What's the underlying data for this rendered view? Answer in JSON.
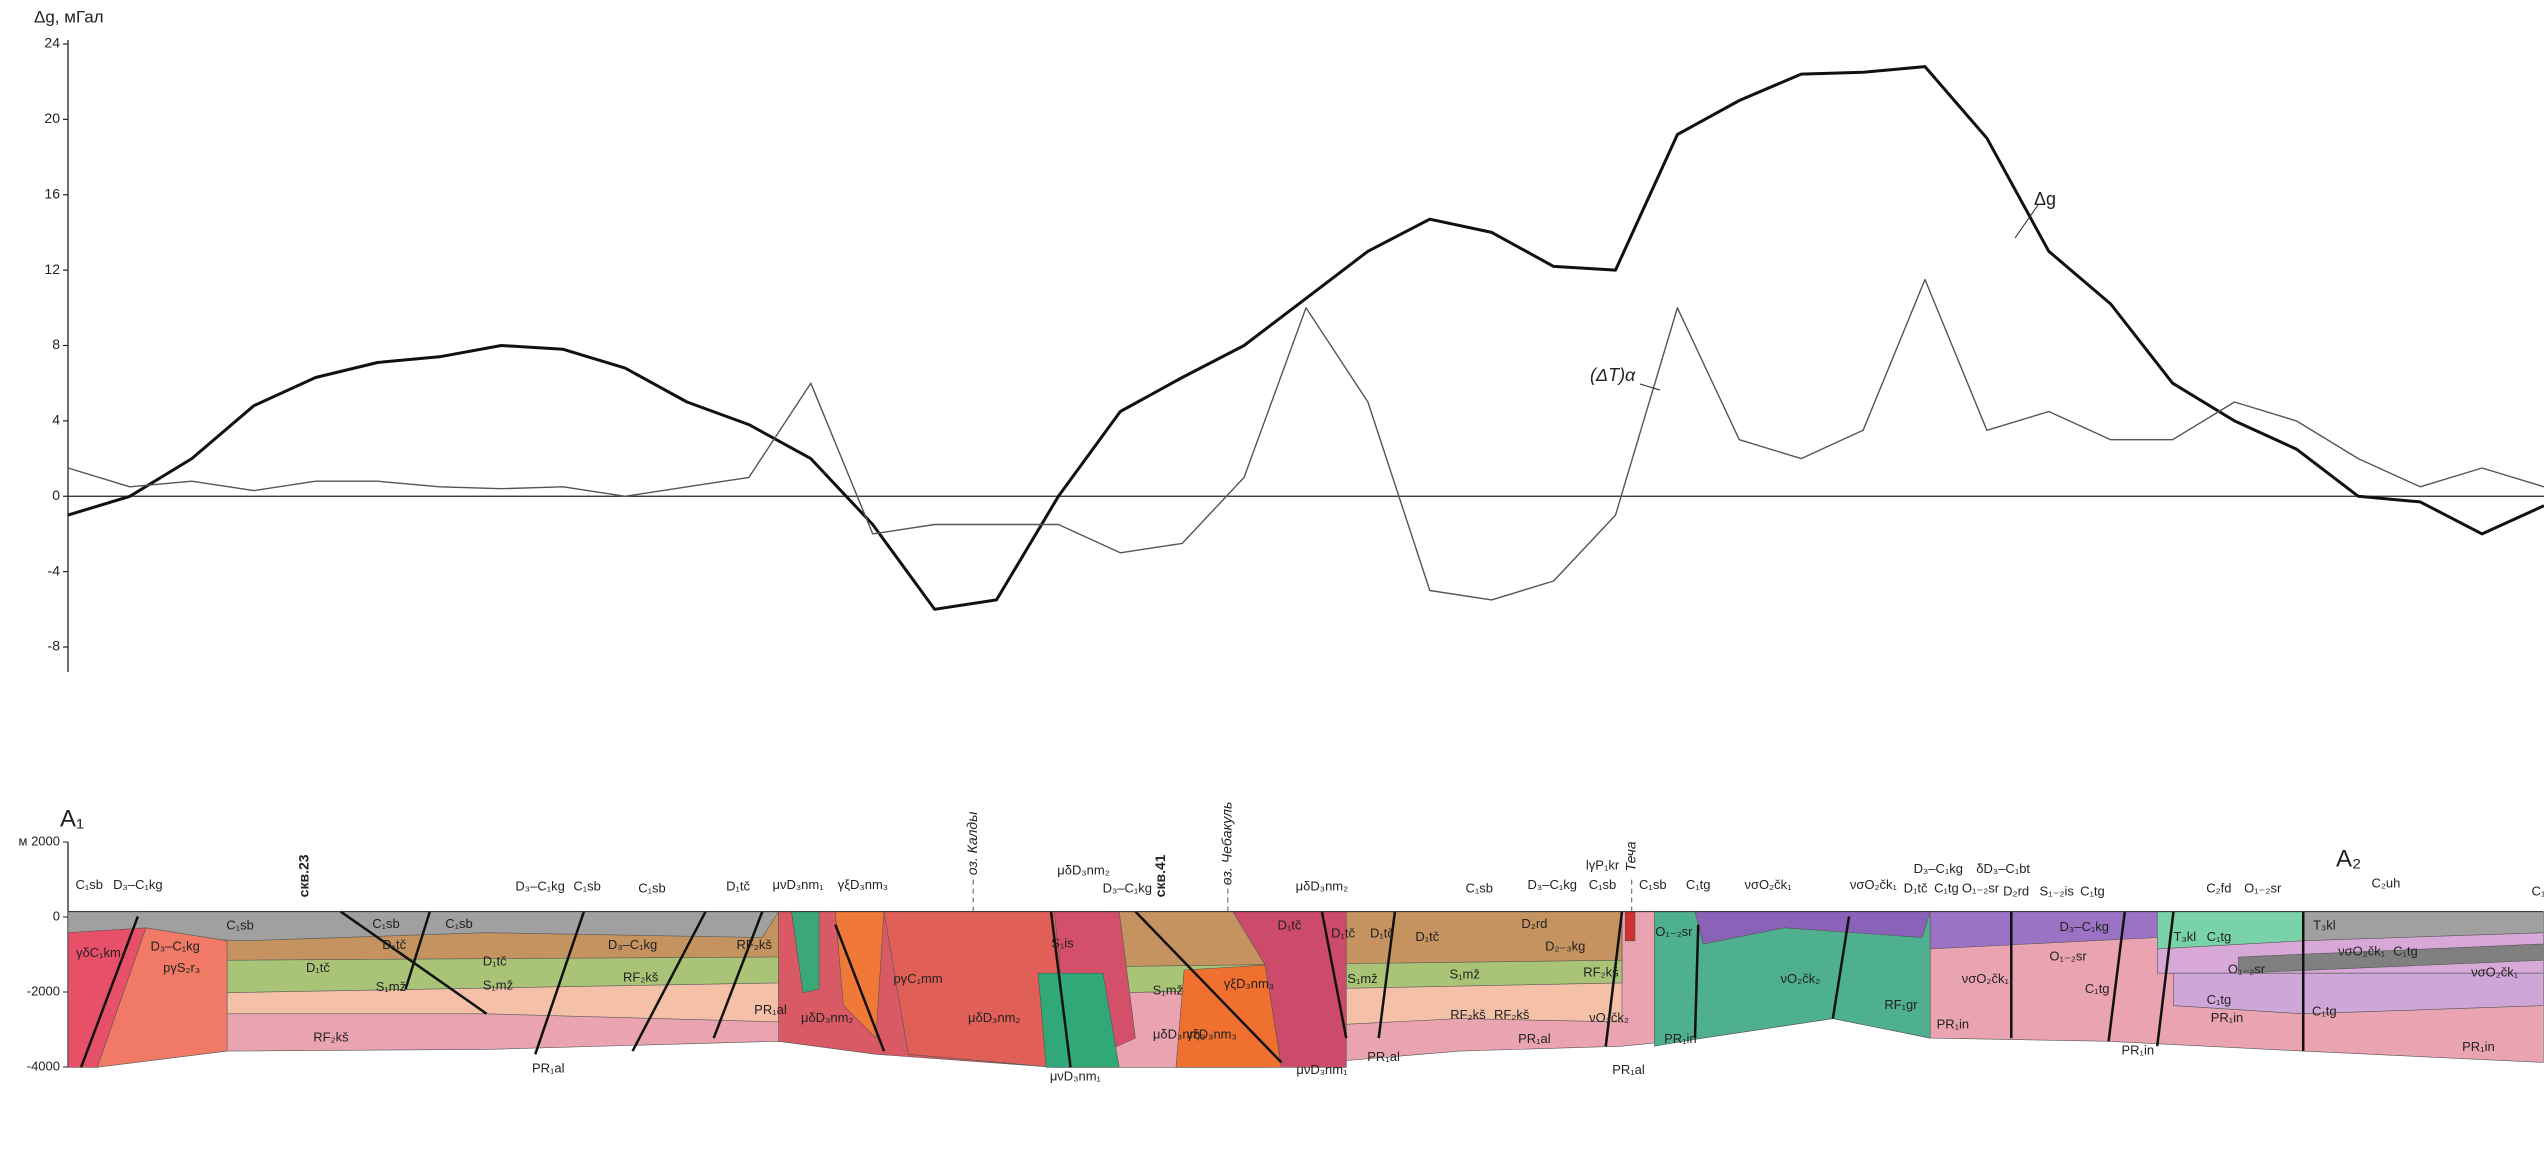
{
  "chart_data": {
    "type": "line",
    "ylabel": "Δg, мГал",
    "ylim": [
      -8,
      24
    ],
    "yticks": [
      24,
      20,
      16,
      12,
      8,
      4,
      0,
      -4,
      -8
    ],
    "series": [
      {
        "name": "Δg",
        "color": "#111111",
        "values": [
          -1,
          0,
          2,
          4.8,
          6.3,
          7.1,
          7.4,
          8,
          7.8,
          6.8,
          5,
          3.8,
          2,
          -1.5,
          -6,
          -5.5,
          0,
          4.5,
          6.3,
          8,
          10.5,
          13,
          14.7,
          14,
          12.2,
          12,
          19.2,
          21,
          22.4,
          22.5,
          22.8,
          19,
          13,
          10.2,
          6,
          4,
          2.5,
          0,
          -0.3,
          -2,
          -0.5
        ]
      },
      {
        "name": "(ΔT)α",
        "color": "#555555",
        "values": [
          1.5,
          0.5,
          0.8,
          0.3,
          0.8,
          0.8,
          0.5,
          0.4,
          0.5,
          0,
          0.5,
          1,
          6,
          -2,
          -1.5,
          -1.5,
          -1.5,
          -3,
          -2.5,
          1,
          10,
          5,
          -5,
          -5.5,
          -4.5,
          -1,
          10,
          3,
          2,
          3.5,
          11.5,
          3.5,
          4.5,
          3,
          3,
          5,
          4,
          2,
          0.5,
          1.5,
          0.5
        ]
      }
    ]
  },
  "section": {
    "start": "A₁",
    "end": "A₂",
    "depth_lim": [
      -4000,
      2000
    ],
    "depth_ticks": [
      {
        "value": 2000,
        "label": "м 2000"
      },
      0,
      -2000,
      -4000
    ],
    "vertical_labels": [
      "скв.23",
      "скв.41",
      "оз. Калды",
      "оз. Чебакуль",
      "Теча"
    ],
    "labels": [
      "C₁sb",
      "D₃–C₁kg",
      "D₃–C₁kg",
      "C₁sb",
      "C₁sb",
      "D₁tč",
      "μνD₃nm₁",
      "γξD₃nm₃",
      "μδD₃nm₂",
      "D₃–C₁kg",
      "μδD₃nm₂",
      "C₁sb",
      "D₃–C₁kg",
      "lγP₁kr",
      "C₁sb",
      "C₁sb",
      "C₁tg",
      "νσO₂čk₁",
      "νσO₂čk₁",
      "D₃–C₁kg",
      "D₁tč",
      "C₁tg",
      "δD₃–C₁bt",
      "O₁₋₂sr",
      "D₂rd",
      "S₁₋₂is",
      "C₁tg",
      "C₂fd",
      "O₁₋₂sr",
      "C₂uh",
      "γδC₁km₁",
      "C₁sb",
      "D₃–C₁kg",
      "pγS₂r₃",
      "D₁tč",
      "S₁mž",
      "C₁sb",
      "C₁sb",
      "D₁tč",
      "D₁tč",
      "S₁mž",
      "D₃–C₁kg",
      "RF₂kš",
      "RF₂kš",
      "PR₁al",
      "RF₂kš",
      "PR₁al",
      "μδD₃nm₂",
      "pγC₁mm",
      "μδD₃nm₂",
      "S₁is",
      "S₁mž",
      "γξD₃nm₃",
      "μδD₃nm₂",
      "γξD₃nm₃",
      "μνD₃nm₁",
      "μνD₃nm₁",
      "D₁tč",
      "D₁tč",
      "D₁tč",
      "D₁tč",
      "S₁mž",
      "S₁mž",
      "PR₁al",
      "RF₂kš",
      "D₂rd",
      "D₂₋₃kg",
      "RF₂kš",
      "RF₂kš",
      "PR₁al",
      "νO₂čk₂",
      "PR₁in",
      "PR₁al",
      "O₁₋₂sr",
      "νO₂čk₂",
      "RF₁gr",
      "PR₁in",
      "νσO₂čk₁",
      "O₁₋₂sr",
      "D₃–C₁kg",
      "C₁tg",
      "PR₁in",
      "PR₁in",
      "C₁tg",
      "T₃kl",
      "C₁tg",
      "O₁₋₂sr",
      "T₃kl",
      "C₁tg",
      "νσO₂čk₁",
      "C₁tg",
      "νσO₂čk₁",
      "PR₁in",
      "C₁"
    ]
  }
}
